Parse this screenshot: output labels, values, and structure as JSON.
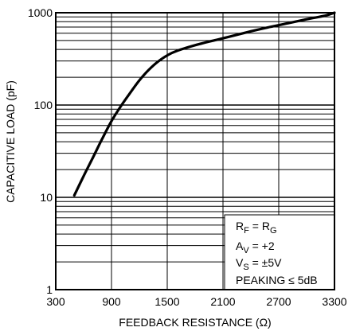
{
  "chart_data": {
    "type": "line",
    "title": "",
    "xlabel": "FEEDBACK RESISTANCE (Ω)",
    "ylabel": "CAPACITIVE LOAD (pF)",
    "xlim": [
      300,
      3300
    ],
    "ylim": [
      1,
      1000
    ],
    "yscale": "log",
    "grid": true,
    "x_ticks": [
      300,
      900,
      1500,
      2100,
      2700,
      3300
    ],
    "x_tick_labels": [
      "300",
      "900",
      "1500",
      "2100",
      "2700",
      "3300"
    ],
    "y_ticks": [
      1,
      10,
      100,
      1000
    ],
    "y_tick_labels": [
      "1",
      "10",
      "100",
      "1000"
    ],
    "series": [
      {
        "x": [
          500,
          600,
          700,
          800,
          900,
          1000,
          1100,
          1200,
          1300,
          1400,
          1500,
          1600,
          1800,
          2000,
          2200,
          2400,
          2600,
          2800,
          3000,
          3200,
          3300
        ],
        "y": [
          10.5,
          17,
          27,
          43,
          67,
          97,
          135,
          185,
          240,
          295,
          345,
          385,
          445,
          500,
          560,
          630,
          700,
          770,
          850,
          930,
          1000
        ]
      }
    ],
    "annotations": {
      "rf": {
        "main": "R",
        "sub": "F",
        "mid": " = R",
        "sub2": "G"
      },
      "av": {
        "main": "A",
        "sub": "V",
        "rest": " = +2"
      },
      "vs": {
        "main": "V",
        "sub": "S",
        "rest": " = ±5V"
      },
      "peaking": "PEAKING ≤ 5dB"
    },
    "colors": {
      "line": "#000000",
      "grid": "#000000",
      "background": "#ffffff"
    }
  }
}
